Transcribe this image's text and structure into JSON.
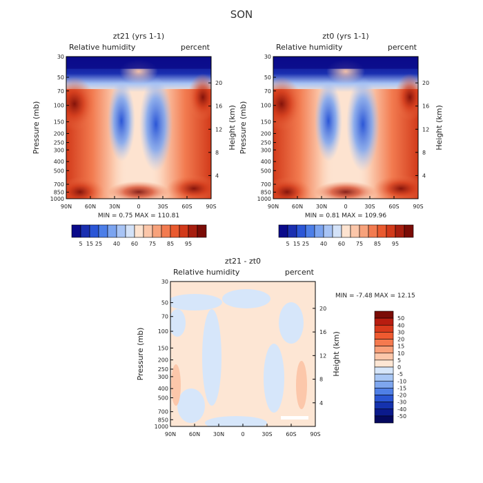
{
  "page_title": "SON",
  "chart_data": [
    {
      "type": "heatmap",
      "title": "zt21 (yrs 1-1)",
      "field": "Relative humidity",
      "units": "percent",
      "xlabel": "",
      "ylabel": "Pressure (mb)",
      "y2label": "Height (km)",
      "x_ticks": [
        "90N",
        "60N",
        "30N",
        "0",
        "30S",
        "60S",
        "90S"
      ],
      "y_ticks": [
        "1000",
        "850",
        "700",
        "500",
        "400",
        "300",
        "250",
        "200",
        "150",
        "100",
        "70",
        "50",
        "30"
      ],
      "y2_ticks": [
        "4",
        "8",
        "12",
        "16",
        "20"
      ],
      "stats": "MIN =    0.75   MAX =  110.81",
      "min": 0.75,
      "max": 110.81,
      "colorbar": {
        "orientation": "horizontal",
        "labels": [
          "5",
          "15",
          "25",
          "40",
          "60",
          "75",
          "85",
          "95"
        ],
        "colors": [
          "#0a0a8a",
          "#1a2fb0",
          "#2b56d6",
          "#4c7ee8",
          "#7ba4f0",
          "#a8c4f5",
          "#d3e2f8",
          "#fde3d0",
          "#fbc6a9",
          "#f7a27b",
          "#f27b50",
          "#e95a2f",
          "#d23a1a",
          "#a71e0f",
          "#7a0c06"
        ]
      }
    },
    {
      "type": "heatmap",
      "title": "zt0 (yrs 1-1)",
      "field": "Relative humidity",
      "units": "percent",
      "xlabel": "",
      "ylabel": "Pressure (mb)",
      "y2label": "Height (km)",
      "x_ticks": [
        "90N",
        "60N",
        "30N",
        "0",
        "30S",
        "60S",
        "90S"
      ],
      "y_ticks": [
        "1000",
        "850",
        "700",
        "500",
        "400",
        "300",
        "250",
        "200",
        "150",
        "100",
        "70",
        "50",
        "30"
      ],
      "y2_ticks": [
        "4",
        "8",
        "12",
        "16",
        "20"
      ],
      "stats": "MIN =    0.81   MAX =  109.96",
      "min": 0.81,
      "max": 109.96,
      "colorbar": {
        "orientation": "horizontal",
        "labels": [
          "5",
          "15",
          "25",
          "40",
          "60",
          "75",
          "85",
          "95"
        ],
        "colors": [
          "#0a0a8a",
          "#1a2fb0",
          "#2b56d6",
          "#4c7ee8",
          "#7ba4f0",
          "#a8c4f5",
          "#d3e2f8",
          "#fde3d0",
          "#fbc6a9",
          "#f7a27b",
          "#f27b50",
          "#e95a2f",
          "#d23a1a",
          "#a71e0f",
          "#7a0c06"
        ]
      }
    },
    {
      "type": "heatmap",
      "title": "zt21 - zt0",
      "field": "Relative humidity",
      "units": "percent",
      "xlabel": "",
      "ylabel": "Pressure (mb)",
      "y2label": "Height (km)",
      "x_ticks": [
        "90N",
        "60N",
        "30N",
        "0",
        "30S",
        "60S",
        "90S"
      ],
      "y_ticks": [
        "1000",
        "850",
        "700",
        "500",
        "400",
        "300",
        "250",
        "200",
        "150",
        "100",
        "70",
        "50",
        "30"
      ],
      "y2_ticks": [
        "4",
        "8",
        "12",
        "16",
        "20"
      ],
      "stats": "MIN =   -7.48   MAX =   12.15",
      "min": -7.48,
      "max": 12.15,
      "colorbar": {
        "orientation": "vertical",
        "labels": [
          "50",
          "40",
          "30",
          "20",
          "15",
          "10",
          "5",
          "0",
          "-5",
          "-10",
          "-15",
          "-20",
          "-30",
          "-40",
          "-50"
        ],
        "colors": [
          "#7a0c06",
          "#b81d10",
          "#d93a1c",
          "#ef5a30",
          "#f57a4f",
          "#f9a07a",
          "#fcc7aa",
          "#fde6d4",
          "#d6e6fa",
          "#a9c7f5",
          "#7ea6ee",
          "#4f7fe6",
          "#2a55d2",
          "#1532ae",
          "#0b1a8c",
          "#05095e"
        ]
      }
    }
  ]
}
